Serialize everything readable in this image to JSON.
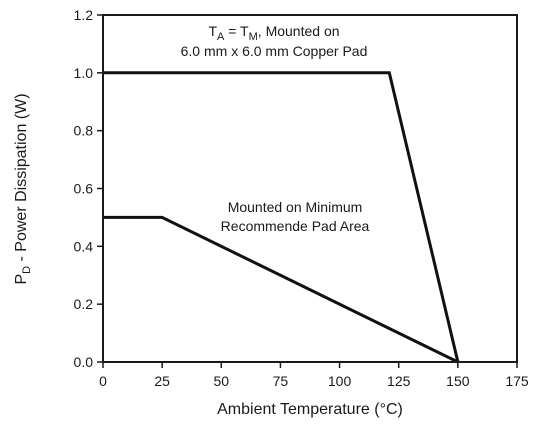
{
  "chart_data": {
    "type": "line",
    "xlabel": "Ambient Temperature (°C)",
    "ylabel": {
      "prefix": "P",
      "subscript": "D",
      "rest": " - Power Dissipation (W)"
    },
    "xlim": [
      0,
      175
    ],
    "ylim": [
      0,
      1.2
    ],
    "x_ticks": [
      "0",
      "25",
      "50",
      "75",
      "100",
      "125",
      "150",
      "175"
    ],
    "y_ticks": [
      "0.0",
      "0.2",
      "0.4",
      "0.6",
      "0.8",
      "1.0",
      "1.2"
    ],
    "grid": false,
    "series": [
      {
        "x": [
          0,
          121,
          150
        ],
        "y": [
          1.0,
          1.0,
          0.0
        ]
      },
      {
        "x": [
          0,
          25,
          150
        ],
        "y": [
          0.5,
          0.5,
          0.0
        ]
      }
    ],
    "annotations": [
      {
        "line1": {
          "t1": "T",
          "s1": "A",
          "mid": " = T",
          "s2": "M",
          "tail": ", Mounted on"
        },
        "line2": "6.0 mm x 6.0 mm Copper Pad"
      },
      {
        "line1": "Mounted on Minimum",
        "line2": "Recommende Pad Area"
      }
    ]
  }
}
